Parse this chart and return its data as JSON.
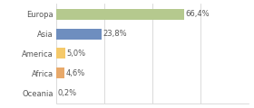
{
  "categories": [
    "Europa",
    "Asia",
    "America",
    "Africa",
    "Oceania"
  ],
  "values": [
    66.4,
    23.8,
    5.0,
    4.6,
    0.2
  ],
  "bar_colors": [
    "#b5c98e",
    "#6e8ebf",
    "#f5c96a",
    "#e8a96a",
    "#d3d3d3"
  ],
  "labels": [
    "66,4%",
    "23,8%",
    "5,0%",
    "4,6%",
    "0,2%"
  ],
  "xlim": [
    0,
    100
  ],
  "background_color": "#ffffff",
  "label_fontsize": 6.0,
  "tick_fontsize": 6.0,
  "bar_height": 0.55,
  "grid_xticks": [
    0,
    25,
    50,
    75,
    100
  ],
  "grid_color": "#cccccc",
  "text_color": "#555555"
}
